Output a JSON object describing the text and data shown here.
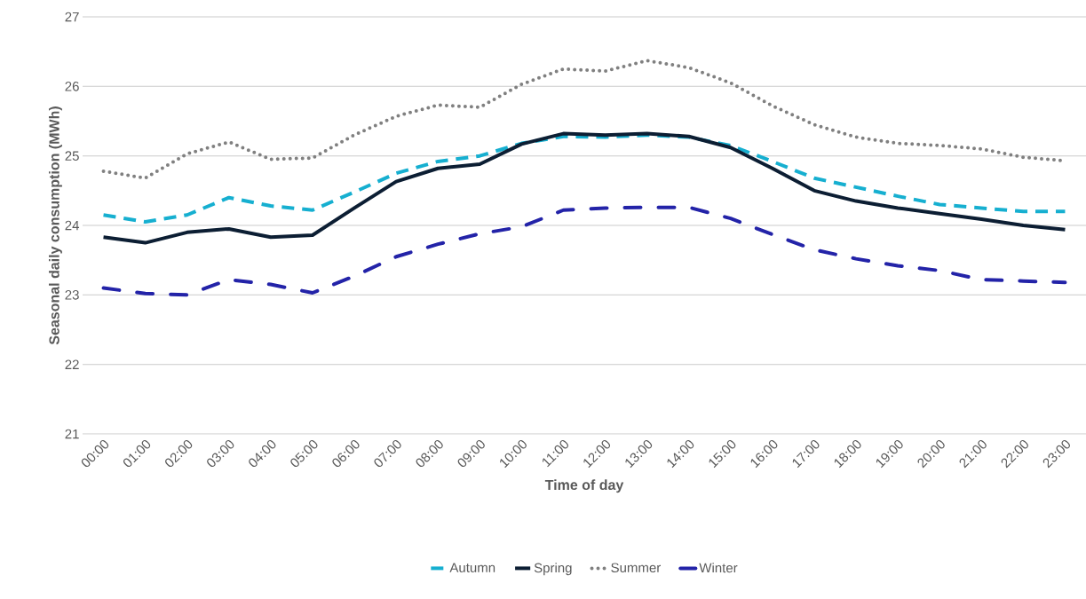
{
  "chart_data": {
    "type": "line",
    "xlabel": "Time of day",
    "ylabel": "Seasonal daily consumption (MWh)",
    "categories": [
      "00:00",
      "01:00",
      "02:00",
      "03:00",
      "04:00",
      "05:00",
      "06:00",
      "07:00",
      "08:00",
      "09:00",
      "10:00",
      "11:00",
      "12:00",
      "13:00",
      "14:00",
      "15:00",
      "16:00",
      "17:00",
      "18:00",
      "19:00",
      "20:00",
      "21:00",
      "22:00",
      "23:00"
    ],
    "series": [
      {
        "name": "Autumn",
        "color": "#16afd0",
        "line_style": "dashed",
        "values": [
          24.15,
          24.05,
          24.15,
          24.4,
          24.28,
          24.22,
          24.48,
          24.75,
          24.92,
          25.0,
          25.18,
          25.28,
          25.27,
          25.3,
          25.27,
          25.15,
          24.92,
          24.68,
          24.55,
          24.42,
          24.3,
          24.25,
          24.2,
          24.2
        ]
      },
      {
        "name": "Spring",
        "color": "#0c1e33",
        "line_style": "solid",
        "values": [
          23.83,
          23.75,
          23.9,
          23.95,
          23.83,
          23.86,
          24.25,
          24.63,
          24.82,
          24.88,
          25.17,
          25.32,
          25.3,
          25.32,
          25.28,
          25.12,
          24.82,
          24.5,
          24.35,
          24.25,
          24.17,
          24.09,
          24.0,
          23.94
        ]
      },
      {
        "name": "Summer",
        "color": "#808080",
        "line_style": "dotted",
        "values": [
          24.78,
          24.68,
          25.03,
          25.2,
          24.95,
          24.97,
          25.3,
          25.57,
          25.73,
          25.7,
          26.03,
          26.25,
          26.22,
          26.37,
          26.27,
          26.05,
          25.72,
          25.45,
          25.27,
          25.18,
          25.15,
          25.1,
          24.98,
          24.93
        ]
      },
      {
        "name": "Winter",
        "color": "#2323a8",
        "line_style": "dashdot",
        "values": [
          23.1,
          23.02,
          23.0,
          23.22,
          23.15,
          23.03,
          23.27,
          23.55,
          23.73,
          23.88,
          23.98,
          24.22,
          24.25,
          24.26,
          24.26,
          24.1,
          23.87,
          23.65,
          23.52,
          23.42,
          23.35,
          23.22,
          23.2,
          23.18
        ]
      }
    ],
    "ylim": [
      21,
      27
    ],
    "yticks": [
      21,
      22,
      23,
      24,
      25,
      26,
      27
    ],
    "grid": "y",
    "legend": "bottom",
    "marker": "none"
  }
}
